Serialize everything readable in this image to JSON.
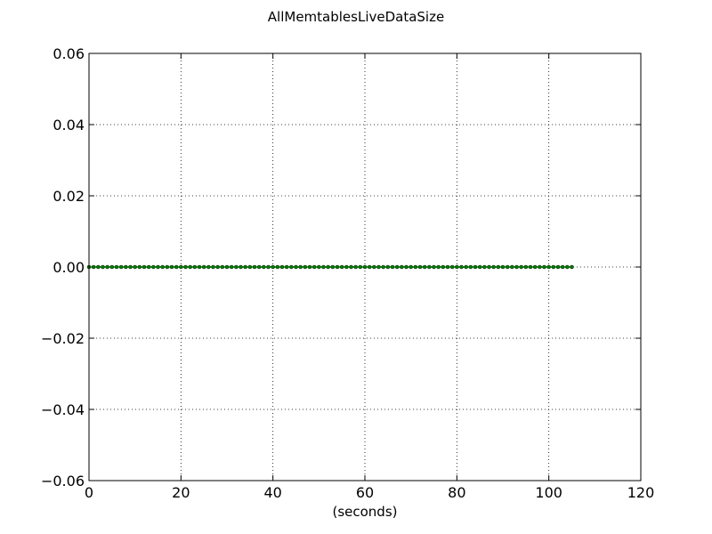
{
  "chart_data": {
    "type": "line",
    "title": "AllMemtablesLiveDataSize",
    "xlabel": "(seconds)",
    "ylabel": "",
    "xlim": [
      0,
      120
    ],
    "ylim": [
      -0.06,
      0.06
    ],
    "x_ticks": [
      0,
      20,
      40,
      60,
      80,
      100,
      120
    ],
    "y_ticks": [
      -0.06,
      -0.04,
      -0.02,
      0.0,
      0.02,
      0.04,
      0.06
    ],
    "x_tick_labels": [
      "0",
      "20",
      "40",
      "60",
      "80",
      "100",
      "120"
    ],
    "y_tick_labels": [
      "−0.06",
      "−0.04",
      "−0.02",
      "0.00",
      "0.02",
      "0.04",
      "0.06"
    ],
    "grid": true,
    "series": [
      {
        "color": "#007f00",
        "marker": "circle",
        "x": [
          0,
          1,
          2,
          3,
          4,
          5,
          6,
          7,
          8,
          9,
          10,
          11,
          12,
          13,
          14,
          15,
          16,
          17,
          18,
          19,
          20,
          21,
          22,
          23,
          24,
          25,
          26,
          27,
          28,
          29,
          30,
          31,
          32,
          33,
          34,
          35,
          36,
          37,
          38,
          39,
          40,
          41,
          42,
          43,
          44,
          45,
          46,
          47,
          48,
          49,
          50,
          51,
          52,
          53,
          54,
          55,
          56,
          57,
          58,
          59,
          60,
          61,
          62,
          63,
          64,
          65,
          66,
          67,
          68,
          69,
          70,
          71,
          72,
          73,
          74,
          75,
          76,
          77,
          78,
          79,
          80,
          81,
          82,
          83,
          84,
          85,
          86,
          87,
          88,
          89,
          90,
          91,
          92,
          93,
          94,
          95,
          96,
          97,
          98,
          99,
          100,
          101,
          102,
          103,
          104,
          105
        ],
        "y": [
          0,
          0,
          0,
          0,
          0,
          0,
          0,
          0,
          0,
          0,
          0,
          0,
          0,
          0,
          0,
          0,
          0,
          0,
          0,
          0,
          0,
          0,
          0,
          0,
          0,
          0,
          0,
          0,
          0,
          0,
          0,
          0,
          0,
          0,
          0,
          0,
          0,
          0,
          0,
          0,
          0,
          0,
          0,
          0,
          0,
          0,
          0,
          0,
          0,
          0,
          0,
          0,
          0,
          0,
          0,
          0,
          0,
          0,
          0,
          0,
          0,
          0,
          0,
          0,
          0,
          0,
          0,
          0,
          0,
          0,
          0,
          0,
          0,
          0,
          0,
          0,
          0,
          0,
          0,
          0,
          0,
          0,
          0,
          0,
          0,
          0,
          0,
          0,
          0,
          0,
          0,
          0,
          0,
          0,
          0,
          0,
          0,
          0,
          0,
          0,
          0,
          0,
          0,
          0,
          0,
          0
        ]
      }
    ]
  }
}
